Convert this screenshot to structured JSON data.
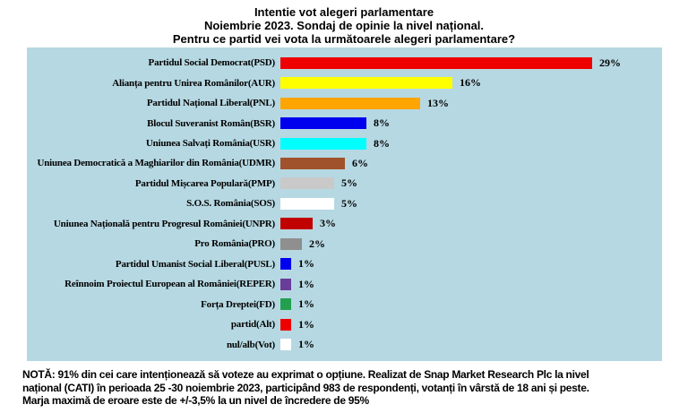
{
  "title": {
    "lines": [
      "Intentie vot alegeri parlamentare",
      "Noiembrie 2023. Sondaj de opinie la nivel național.",
      "Pentru ce partid vei vota la următoarele alegeri parlamentare?"
    ]
  },
  "chart_data": {
    "type": "bar",
    "orientation": "horizontal",
    "title": "Intentie vot alegeri parlamentare — Noiembrie 2023. Sondaj de opinie la nivel național.",
    "xlabel": "",
    "ylabel": "",
    "xlim": [
      0,
      30
    ],
    "grid": false,
    "legend": false,
    "plot_background": "#b6d8e2",
    "categories": [
      "Partidul Social Democrat(PSD)",
      "Alianța pentru Unirea Românilor(AUR)",
      "Partidul Național Liberal(PNL)",
      "Blocul Suveranist Român(BSR)",
      "Uniunea Salvați România(USR)",
      "Uniunea Democratică a Maghiarilor din România(UDMR)",
      "Partidul Mișcarea Populară(PMP)",
      "S.O.S. România(SOS)",
      "Uniunea Națională pentru Progresul României(UNPR)",
      "Pro România(PRO)",
      "Partidul Umanist Social Liberal(PUSL)",
      "Reînnoim Proiectul European al României(REPER)",
      "Forța Dreptei(FD)",
      "partid(Alt)",
      "nul/alb(Vot)"
    ],
    "values": [
      29,
      16,
      13,
      8,
      8,
      6,
      5,
      5,
      3,
      2,
      1,
      1,
      1,
      1,
      1
    ],
    "value_labels": [
      "29%",
      "16%",
      "13%",
      "8%",
      "8%",
      "6%",
      "5%",
      "5%",
      "3%",
      "2%",
      "1%",
      "1%",
      "1%",
      "1%",
      "1%"
    ],
    "bar_colors": [
      "#ee0000",
      "#ffff00",
      "#ffa500",
      "#0000ee",
      "#00ffff",
      "#a0522d",
      "#c9c9c9",
      "#ffffff",
      "#c10000",
      "#8f8f8f",
      "#0000ee",
      "#6a3d9a",
      "#22a04f",
      "#ee0000",
      "#ffffff"
    ]
  },
  "note": {
    "lines": [
      "NOTĂ: 91% din cei care intenționează să voteze au exprimat o opțiune. Realizat de Snap Market Research Plc la nivel",
      "național (CATI) în perioada 25 -30 noiembrie 2023, participând 983 de respondenți, votanți în vârstă de 18 ani și peste.",
      "Marja maximă de eroare este de +/-3,5% la un nivel de încredere de 95%"
    ]
  }
}
